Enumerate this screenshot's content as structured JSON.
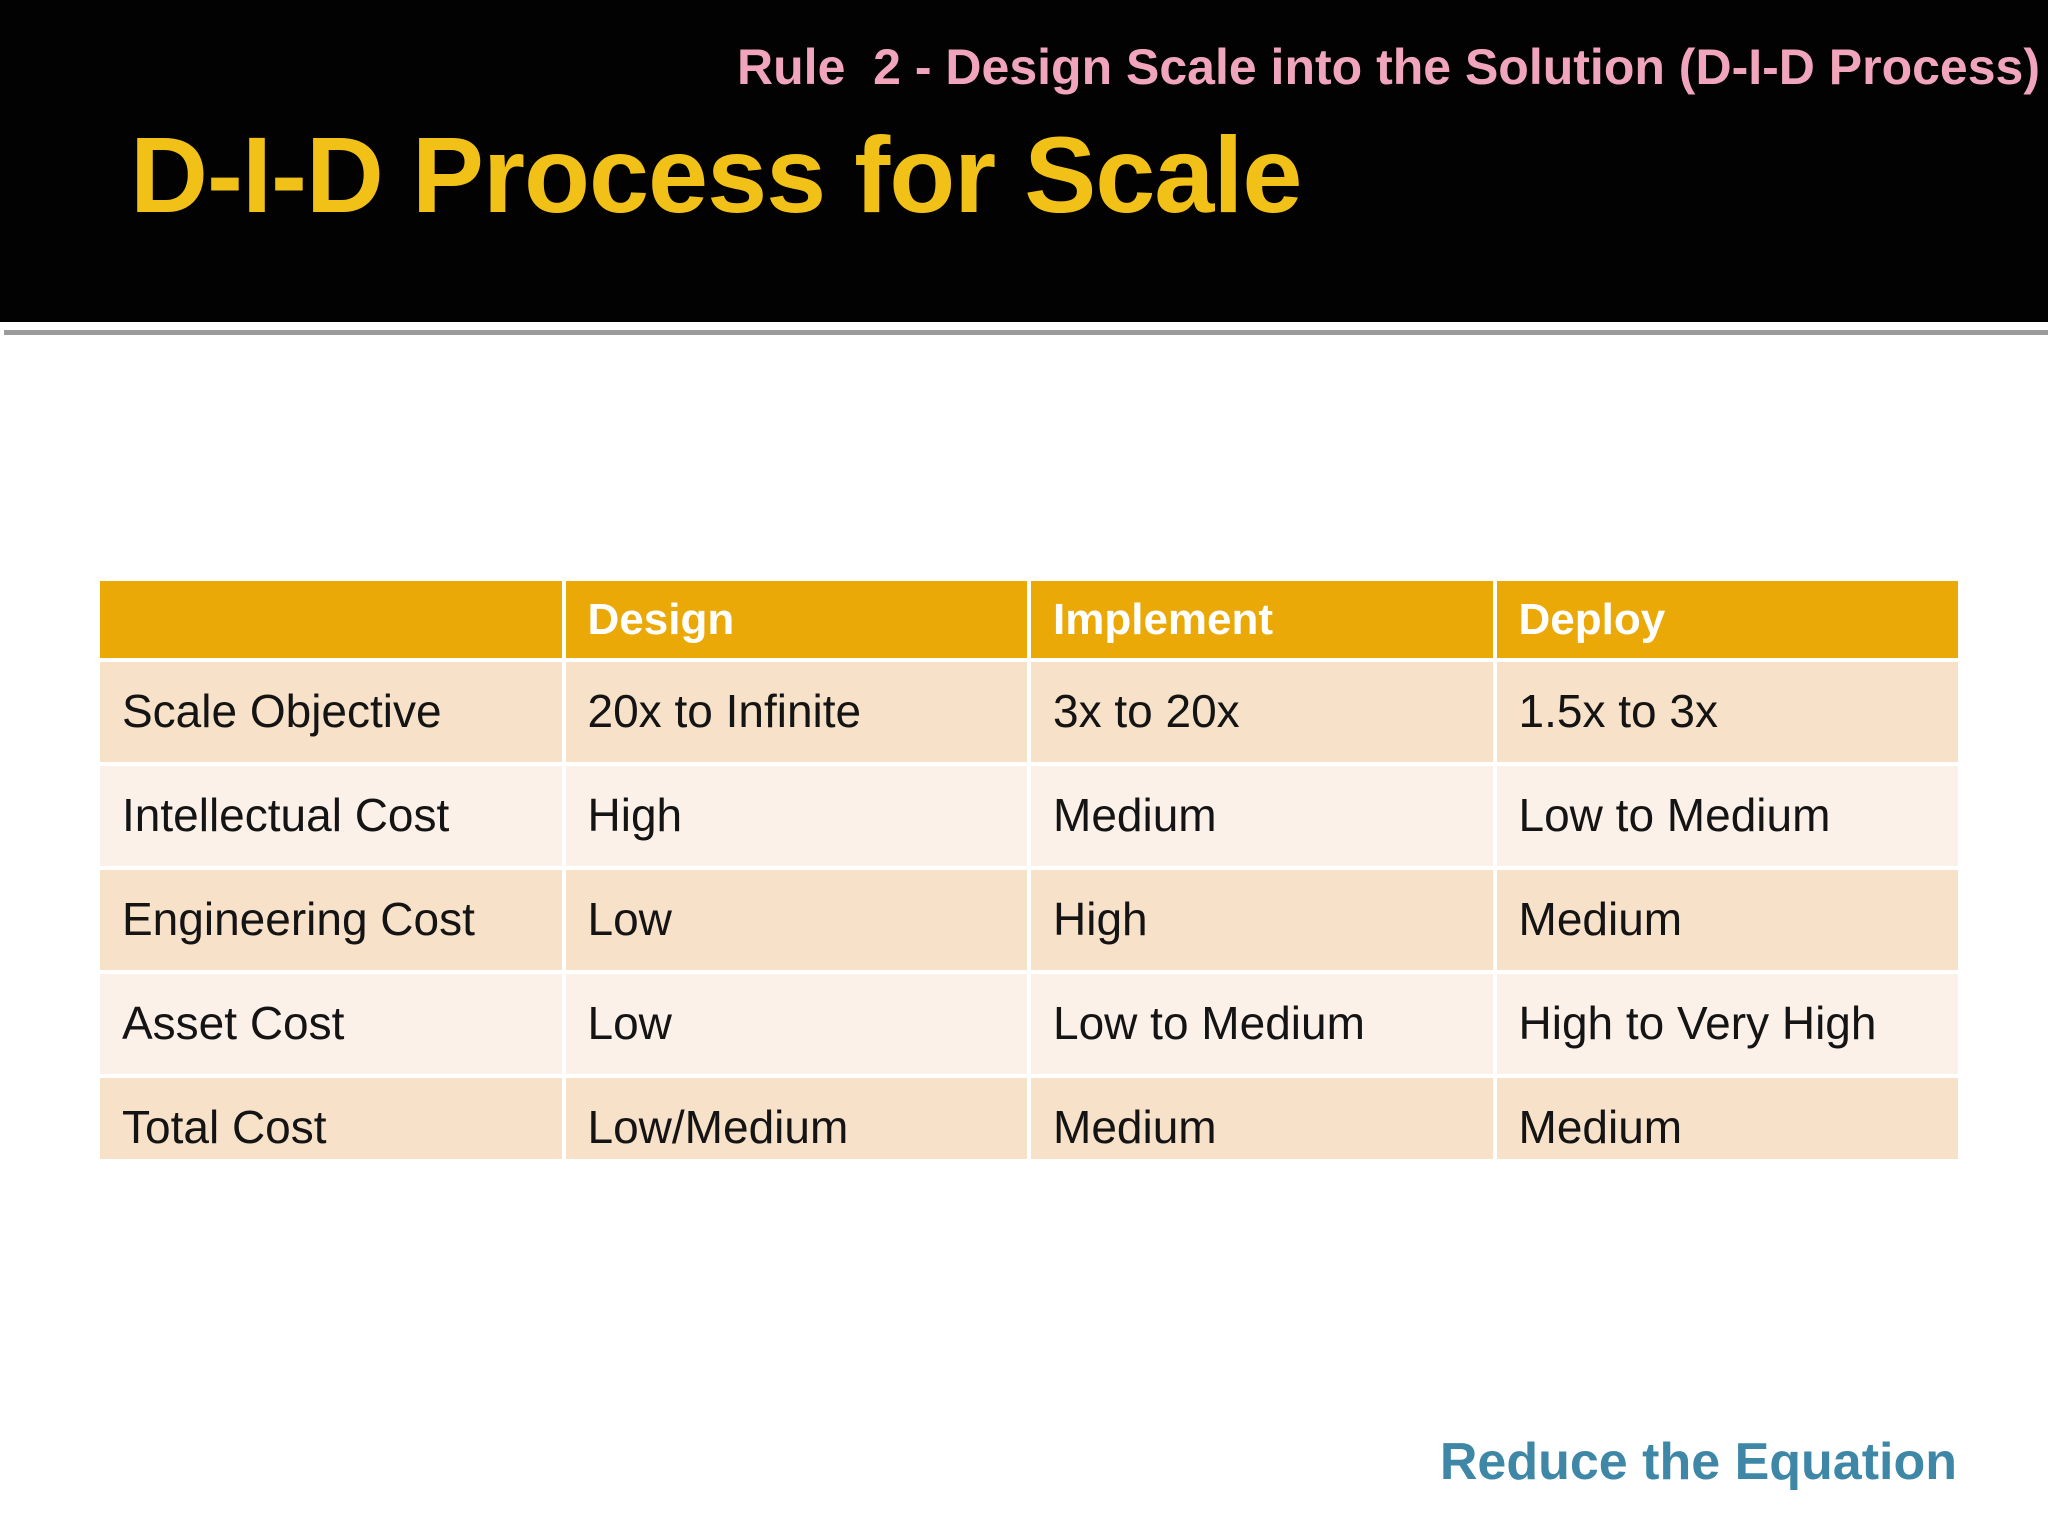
{
  "slide": {
    "kicker": "Rule  2 - Design Scale into the Solution (D-I-D Process)",
    "title": "D-I-D Process for Scale",
    "footer_note": "Reduce the Equation"
  },
  "table": {
    "columns": [
      "",
      "Design",
      "Implement",
      "Deploy"
    ],
    "rows": [
      {
        "label": "Scale Objective",
        "values": [
          "20x to Infinite",
          "3x to 20x",
          "1.5x to 3x"
        ]
      },
      {
        "label": "Intellectual Cost",
        "values": [
          "High",
          "Medium",
          "Low to Medium"
        ]
      },
      {
        "label": "Engineering Cost",
        "values": [
          "Low",
          "High",
          "Medium"
        ]
      },
      {
        "label": "Asset Cost",
        "values": [
          "Low",
          "Low to Medium",
          "High to Very High"
        ]
      },
      {
        "label": "Total Cost",
        "values": [
          "Low/Medium",
          "Medium",
          "Medium"
        ]
      }
    ]
  },
  "colors": {
    "banner_background": "#020202",
    "title_yellow": "#F2C117",
    "kicker_pink": "#F0A5BC",
    "table_header_orange": "#EBA907",
    "row_tan": "#F7E1C8",
    "row_cream": "#FCF1E8",
    "footer_teal": "#3E87A6",
    "divider_gray": "#9B9B9B"
  }
}
